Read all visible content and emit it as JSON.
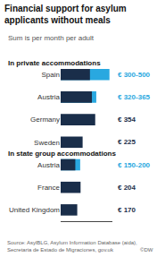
{
  "chart_data": {
    "type": "bar",
    "orientation": "horizontal",
    "title": "Financial support for asylum\napplicants without meals",
    "subtitle": "Sum is per month per adult",
    "categories": [
      "Spain",
      "Austria",
      "Germany",
      "Sweden",
      "Austria",
      "France",
      "United Kingdom"
    ],
    "series": [
      {
        "color": "#1a2e4a",
        "values": [
          300,
          320,
          354,
          225,
          150,
          204,
          170
        ]
      },
      {
        "color": "#29a8e0",
        "values": [
          500,
          365,
          null,
          null,
          200,
          null,
          null
        ]
      }
    ],
    "value_labels": [
      "€ 300-500",
      "€ 320-365",
      "€ 354",
      "€ 225",
      "€ 150-200",
      "€ 204",
      "€ 170"
    ],
    "data_labels": true,
    "xlim": [
      0,
      530
    ],
    "tick_labels": "y",
    "grid": false,
    "annotations": [
      {
        "text": "In private accommodations",
        "category": 0
      },
      {
        "text": "In state group accommodations",
        "category": 4
      },
      {
        "text": "Source: AsylBLG, Asylum Information Database (aida),\nSecretaria de Estado de Migraciones, gov.uk"
      },
      {
        "text": "©DW"
      }
    ]
  }
}
